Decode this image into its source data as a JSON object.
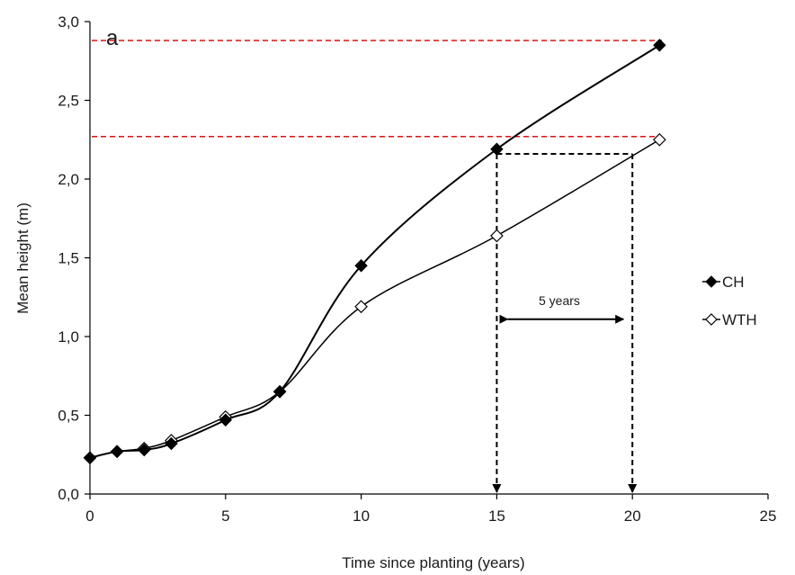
{
  "chart_data": {
    "type": "line",
    "panel_label": "a",
    "xlabel": "Time since planting (years)",
    "ylabel": "Mean height (m)",
    "xlim": [
      0,
      25
    ],
    "ylim": [
      0,
      3.0
    ],
    "x_ticks": [
      0,
      5,
      10,
      15,
      20,
      25
    ],
    "x_tick_labels": [
      "0",
      "5",
      "10",
      "15",
      "20",
      "25"
    ],
    "y_ticks": [
      0,
      0.5,
      1.0,
      1.5,
      2.0,
      2.5,
      3.0
    ],
    "y_tick_labels": [
      "0,0",
      "0,5",
      "1,0",
      "1,5",
      "2,0",
      "2,5",
      "3,0"
    ],
    "grid": false,
    "legend_position": "right",
    "series": [
      {
        "name": "CH",
        "marker": "filled-diamond",
        "color": "#000000",
        "x": [
          0,
          1,
          2,
          3,
          5,
          7,
          10,
          15,
          21
        ],
        "y": [
          0.23,
          0.27,
          0.28,
          0.32,
          0.47,
          0.65,
          1.45,
          2.19,
          2.85
        ]
      },
      {
        "name": "WTH",
        "marker": "open-diamond",
        "color": "#000000",
        "x": [
          0,
          1,
          2,
          3,
          5,
          7,
          10,
          15,
          21
        ],
        "y": [
          0.23,
          0.27,
          0.29,
          0.34,
          0.49,
          0.65,
          1.19,
          1.64,
          2.25
        ]
      }
    ],
    "reference_lines": {
      "color": "#e01010",
      "horizontal_y": [
        2.88,
        2.27
      ]
    },
    "annotation": {
      "label": "5 years",
      "from_x": 15,
      "to_x": 20,
      "level_y": 2.16,
      "arrow_y": 1.11
    }
  }
}
